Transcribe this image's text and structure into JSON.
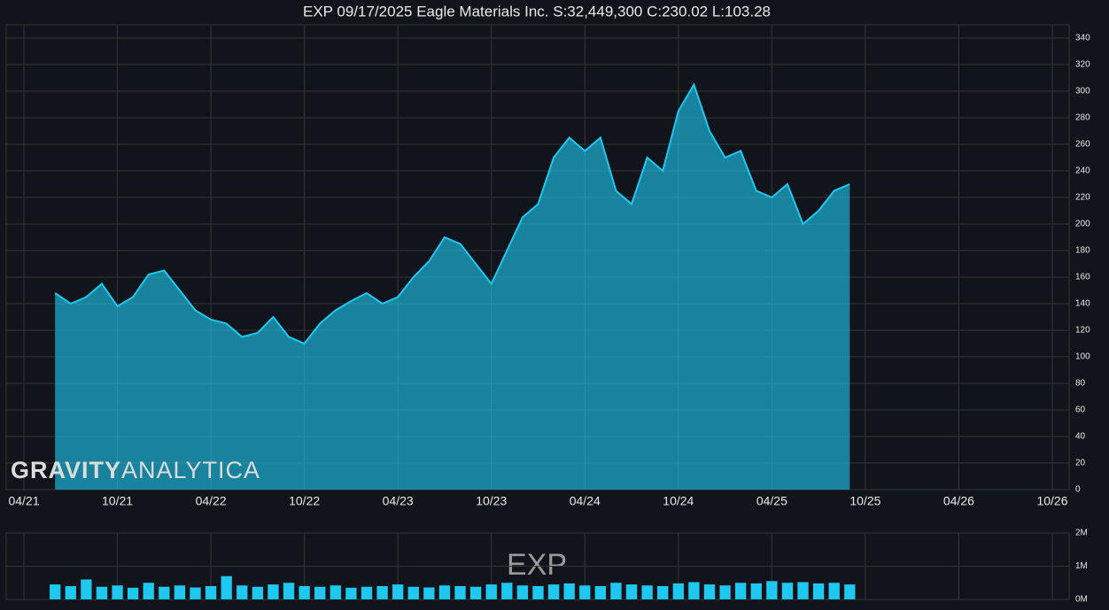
{
  "chart_data": [
    {
      "type": "area",
      "title": "EXP 09/17/2025 Eagle Materials Inc. S:32,449,300 C:230.02 L:103.28",
      "logo": [
        "GRAVITY",
        "ANALYTICA"
      ],
      "x": [
        "06/21",
        "07/21",
        "08/21",
        "09/21",
        "10/21",
        "11/21",
        "12/21",
        "01/22",
        "02/22",
        "03/22",
        "04/22",
        "05/22",
        "06/22",
        "07/22",
        "08/22",
        "09/22",
        "10/22",
        "11/22",
        "12/22",
        "01/23",
        "02/23",
        "03/23",
        "04/23",
        "05/23",
        "06/23",
        "07/23",
        "08/23",
        "09/23",
        "10/23",
        "11/23",
        "12/23",
        "01/24",
        "02/24",
        "03/24",
        "04/24",
        "05/24",
        "06/24",
        "07/24",
        "08/24",
        "09/24",
        "10/24",
        "11/24",
        "12/24",
        "01/25",
        "02/25",
        "03/25",
        "04/25",
        "05/25",
        "06/25",
        "07/25",
        "08/25",
        "09/25"
      ],
      "values": [
        148,
        140,
        145,
        155,
        138,
        145,
        162,
        165,
        150,
        135,
        128,
        125,
        115,
        118,
        130,
        115,
        110,
        125,
        135,
        142,
        148,
        140,
        145,
        160,
        172,
        190,
        185,
        170,
        155,
        180,
        205,
        215,
        250,
        265,
        255,
        265,
        225,
        215,
        250,
        240,
        285,
        305,
        270,
        250,
        255,
        225,
        220,
        230,
        200,
        210,
        225,
        230
      ],
      "color": "#1ec8f0",
      "xlim": [
        "04/21",
        "10/26"
      ],
      "xticks": [
        "04/21",
        "10/21",
        "04/22",
        "10/22",
        "04/23",
        "10/23",
        "04/24",
        "10/24",
        "04/25",
        "10/25",
        "04/26",
        "10/26"
      ],
      "ylim": [
        0,
        340
      ],
      "yticks": [
        0,
        20,
        40,
        60,
        80,
        100,
        120,
        140,
        160,
        180,
        200,
        220,
        240,
        260,
        280,
        300,
        320,
        340
      ],
      "grid": true
    },
    {
      "type": "bar",
      "annotation": "EXP",
      "x": [
        "06/21",
        "07/21",
        "08/21",
        "09/21",
        "10/21",
        "11/21",
        "12/21",
        "01/22",
        "02/22",
        "03/22",
        "04/22",
        "05/22",
        "06/22",
        "07/22",
        "08/22",
        "09/22",
        "10/22",
        "11/22",
        "12/22",
        "01/23",
        "02/23",
        "03/23",
        "04/23",
        "05/23",
        "06/23",
        "07/23",
        "08/23",
        "09/23",
        "10/23",
        "11/23",
        "12/23",
        "01/24",
        "02/24",
        "03/24",
        "04/24",
        "05/24",
        "06/24",
        "07/24",
        "08/24",
        "09/24",
        "10/24",
        "11/24",
        "12/24",
        "01/25",
        "02/25",
        "03/25",
        "04/25",
        "05/25",
        "06/25",
        "07/25",
        "08/25",
        "09/25"
      ],
      "values": [
        450000,
        400000,
        600000,
        380000,
        420000,
        350000,
        500000,
        380000,
        420000,
        360000,
        400000,
        700000,
        420000,
        380000,
        450000,
        500000,
        400000,
        380000,
        420000,
        350000,
        380000,
        400000,
        450000,
        380000,
        360000,
        420000,
        400000,
        380000,
        450000,
        500000,
        420000,
        400000,
        450000,
        480000,
        420000,
        400000,
        500000,
        450000,
        420000,
        400000,
        480000,
        520000,
        450000,
        420000,
        500000,
        480000,
        550000,
        500000,
        520000,
        480000,
        500000,
        450000
      ],
      "color": "#1ec8f0",
      "ylim": [
        0,
        2000000
      ],
      "yticks": [
        {
          "value": 0,
          "label": "0M"
        },
        {
          "value": 1000000,
          "label": "1M"
        },
        {
          "value": 2000000,
          "label": "2M"
        }
      ],
      "grid": true
    }
  ]
}
